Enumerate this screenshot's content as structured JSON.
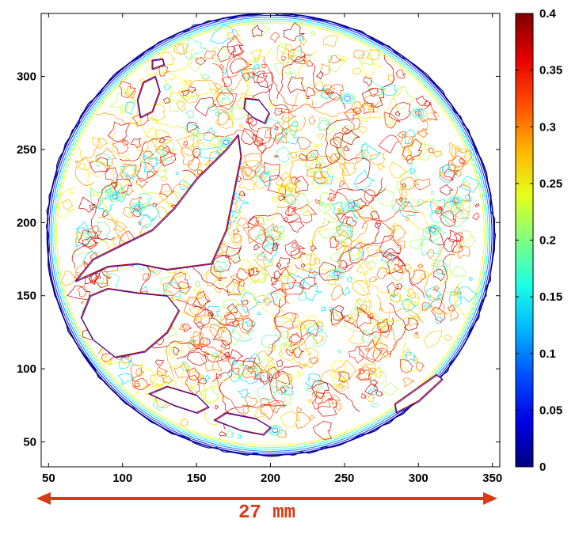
{
  "chart_data": {
    "type": "contour",
    "title": "",
    "xlabel": "",
    "ylabel": "",
    "xlim": [
      45,
      355
    ],
    "ylim": [
      33,
      343
    ],
    "xticks": [
      50,
      100,
      150,
      200,
      250,
      300,
      350
    ],
    "yticks": [
      50,
      100,
      150,
      200,
      250,
      300
    ],
    "grid": false,
    "colorbar": {
      "colormap": "jet",
      "range": [
        0,
        0.4
      ],
      "ticks": [
        0,
        0.05,
        0.1,
        0.15,
        0.2,
        0.25,
        0.3,
        0.35,
        0.4
      ],
      "tick_labels": [
        "0",
        "0.05",
        "0.1",
        "0.15",
        "0.2",
        "0.25",
        "0.3",
        "0.35",
        "0.4"
      ]
    },
    "sample": {
      "shape": "circle",
      "center": [
        200,
        192
      ],
      "radius": 151
    },
    "voids": [
      {
        "name": "large-crack",
        "outline": [
          [
            68,
            160
          ],
          [
            90,
            170
          ],
          [
            110,
            172
          ],
          [
            130,
            168
          ],
          [
            160,
            172
          ],
          [
            170,
            195
          ],
          [
            180,
            245
          ],
          [
            178,
            260
          ],
          [
            170,
            250
          ],
          [
            150,
            230
          ],
          [
            135,
            210
          ],
          [
            120,
            195
          ],
          [
            100,
            185
          ],
          [
            80,
            175
          ]
        ]
      },
      {
        "name": "left-pore",
        "outline": [
          [
            78,
            150
          ],
          [
            90,
            155
          ],
          [
            110,
            152
          ],
          [
            130,
            150
          ],
          [
            138,
            140
          ],
          [
            130,
            125
          ],
          [
            115,
            112
          ],
          [
            95,
            108
          ],
          [
            80,
            120
          ],
          [
            72,
            135
          ]
        ]
      },
      {
        "name": "upper-left-pore",
        "outline": [
          [
            112,
            272
          ],
          [
            120,
            276
          ],
          [
            125,
            290
          ],
          [
            122,
            300
          ],
          [
            114,
            296
          ],
          [
            110,
            284
          ]
        ]
      },
      {
        "name": "top-left-small",
        "outline": [
          [
            120,
            305
          ],
          [
            128,
            308
          ],
          [
            127,
            312
          ],
          [
            120,
            311
          ]
        ]
      },
      {
        "name": "top-pore",
        "outline": [
          [
            183,
            285
          ],
          [
            192,
            284
          ],
          [
            199,
            275
          ],
          [
            196,
            268
          ],
          [
            188,
            272
          ],
          [
            182,
            278
          ]
        ]
      },
      {
        "name": "bottom-pore-1",
        "outline": [
          [
            118,
            83
          ],
          [
            135,
            75
          ],
          [
            150,
            70
          ],
          [
            158,
            74
          ],
          [
            150,
            82
          ],
          [
            130,
            88
          ]
        ]
      },
      {
        "name": "bottom-pore-2",
        "outline": [
          [
            162,
            65
          ],
          [
            180,
            58
          ],
          [
            195,
            55
          ],
          [
            200,
            60
          ],
          [
            190,
            66
          ],
          [
            170,
            70
          ]
        ]
      },
      {
        "name": "right-pore",
        "outline": [
          [
            285,
            70
          ],
          [
            300,
            78
          ],
          [
            316,
            93
          ],
          [
            312,
            96
          ],
          [
            298,
            86
          ],
          [
            284,
            76
          ]
        ]
      }
    ],
    "scale_bar": {
      "label": "27 mm",
      "color": "#d83a12"
    }
  }
}
